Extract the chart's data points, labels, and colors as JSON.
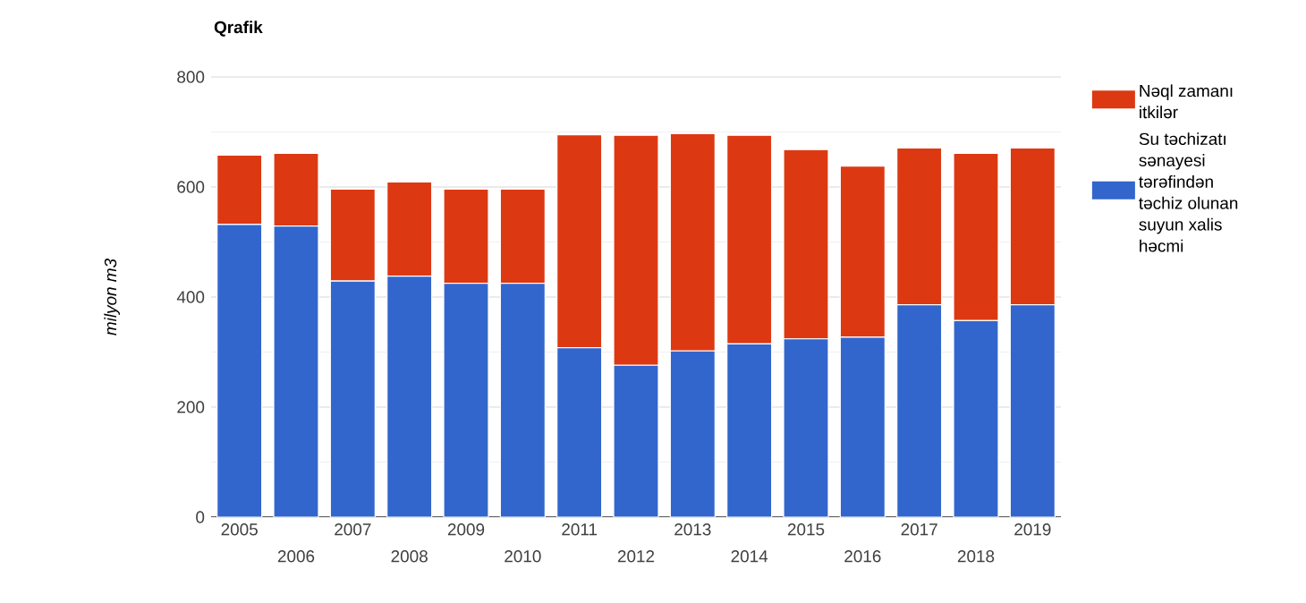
{
  "chart_data": {
    "type": "bar",
    "stacked": true,
    "title": "Qrafik",
    "ylabel": "milyon m3",
    "categories": [
      "2005",
      "2006",
      "2007",
      "2008",
      "2009",
      "2010",
      "2011",
      "2012",
      "2013",
      "2014",
      "2015",
      "2016",
      "2017",
      "2018",
      "2019"
    ],
    "series": [
      {
        "name": "Su təchizatı sənayesi tərəfindən təchiz olunan suyun xalis həcmi",
        "color": "#3366cc",
        "values": [
          532,
          529,
          429,
          438,
          425,
          425,
          308,
          276,
          302,
          315,
          324,
          327,
          386,
          357,
          386
        ]
      },
      {
        "name": "Nəql zamanı itkilər",
        "color": "#dc3912",
        "values": [
          126,
          132,
          167,
          171,
          171,
          171,
          387,
          418,
          395,
          379,
          344,
          311,
          285,
          304,
          285
        ]
      }
    ],
    "ylim": [
      0,
      800
    ],
    "yticks": [
      0,
      {
        "value": 100,
        "label": null
      },
      200,
      {
        "value": 300,
        "label": null
      },
      400,
      {
        "value": 500,
        "label": null
      },
      600,
      {
        "value": 700,
        "label": null
      },
      800
    ],
    "grid": "y",
    "legend": "right"
  }
}
